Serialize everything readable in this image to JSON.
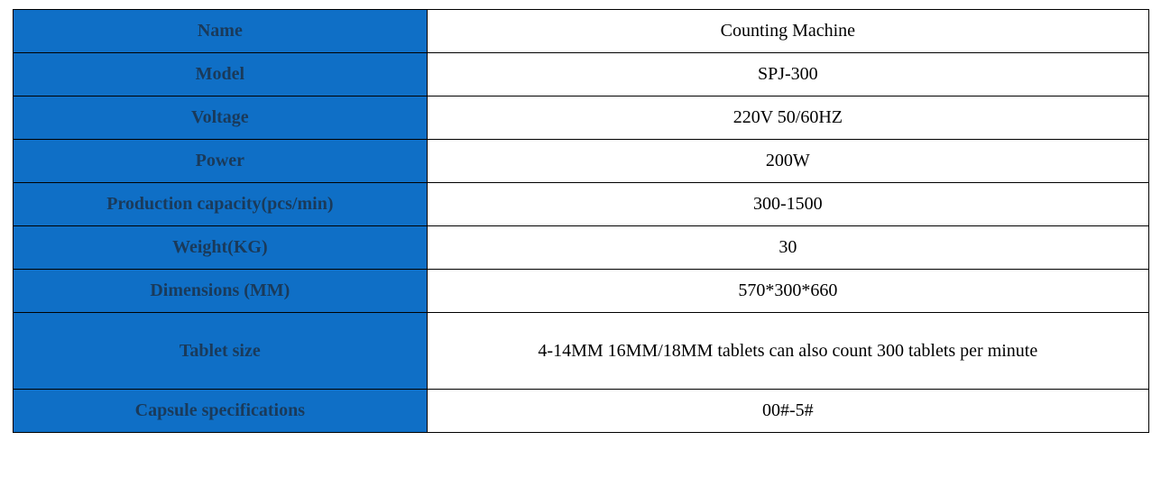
{
  "table": {
    "label_bg_color": "#0f6fc6",
    "label_text_color": "#1a3a5a",
    "value_bg_color": "#ffffff",
    "value_text_color": "#000000",
    "border_color": "#000000",
    "font_family": "Times New Roman",
    "label_font_size": 20,
    "value_font_size": 20,
    "label_font_weight": "bold",
    "label_col_width": 460,
    "value_col_width": 800,
    "rows": [
      {
        "label": "Name",
        "value": "Counting Machine"
      },
      {
        "label": "Model",
        "value": "SPJ-300"
      },
      {
        "label": "Voltage",
        "value": "220V 50/60HZ"
      },
      {
        "label": "Power",
        "value": "200W"
      },
      {
        "label": "Production capacity(pcs/min)",
        "value": "300-1500"
      },
      {
        "label": "Weight(KG)",
        "value": "30"
      },
      {
        "label": "Dimensions (MM)",
        "value": "570*300*660"
      },
      {
        "label": "Tablet size",
        "value": "4-14MM 16MM/18MM tablets can also count 300 tablets per minute",
        "tall": true
      },
      {
        "label": "Capsule specifications",
        "value": "00#-5#"
      }
    ]
  }
}
